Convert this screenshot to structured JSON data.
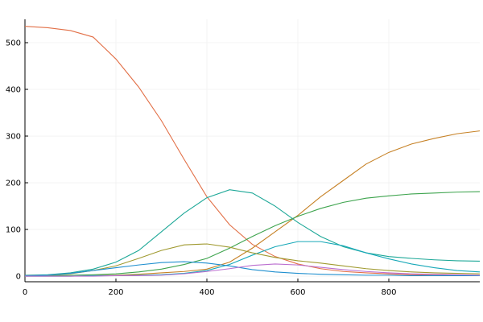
{
  "chart_data": {
    "type": "line",
    "x": [
      0,
      50,
      100,
      150,
      200,
      250,
      300,
      350,
      400,
      450,
      500,
      550,
      600,
      650,
      700,
      750,
      800,
      850,
      900,
      950,
      1000
    ],
    "series": [
      {
        "color": "#e26f46",
        "values": [
          535,
          532,
          526,
          512,
          465,
          405,
          333,
          250,
          170,
          110,
          68,
          42,
          26,
          16,
          10,
          7,
          5,
          3,
          2,
          2,
          1
        ]
      },
      {
        "color": "#c68125",
        "values": [
          0,
          0,
          0,
          1,
          2,
          4,
          7,
          10,
          15,
          30,
          60,
          95,
          130,
          170,
          205,
          240,
          265,
          283,
          295,
          305,
          311
        ]
      },
      {
        "color": "#3ea44e",
        "values": [
          1,
          1,
          2,
          3,
          5,
          9,
          15,
          25,
          38,
          60,
          85,
          108,
          128,
          145,
          158,
          167,
          172,
          176,
          178,
          180,
          181
        ]
      },
      {
        "color": "#1ea898",
        "values": [
          2,
          3,
          7,
          15,
          30,
          55,
          95,
          135,
          168,
          185,
          178,
          150,
          115,
          85,
          63,
          50,
          42,
          38,
          35,
          33,
          32
        ]
      },
      {
        "color": "#17a8b8",
        "values": [
          0,
          0,
          0,
          1,
          1,
          2,
          3,
          6,
          12,
          25,
          45,
          63,
          74,
          74,
          65,
          50,
          37,
          26,
          18,
          12,
          9
        ]
      },
      {
        "color": "#a09a30",
        "values": [
          1,
          2,
          5,
          12,
          22,
          38,
          55,
          67,
          69,
          62,
          50,
          40,
          33,
          28,
          22,
          16,
          12,
          9,
          7,
          6,
          5
        ]
      },
      {
        "color": "#1f8fcf",
        "values": [
          1,
          2,
          6,
          12,
          18,
          24,
          29,
          31,
          28,
          22,
          14,
          9,
          6,
          4,
          3,
          2,
          2,
          1,
          1,
          1,
          1
        ]
      },
      {
        "color": "#bb6fd0",
        "values": [
          0,
          0,
          0,
          0,
          1,
          1,
          2,
          5,
          10,
          16,
          23,
          26,
          24,
          19,
          14,
          10,
          7,
          5,
          4,
          3,
          2
        ]
      }
    ],
    "xlim": [
      0,
      1000
    ],
    "ylim": [
      -12,
      550
    ],
    "xticks": [
      0,
      200,
      400,
      600,
      800
    ],
    "yticks": [
      0,
      100,
      200,
      300,
      400,
      500
    ],
    "grid": true
  }
}
